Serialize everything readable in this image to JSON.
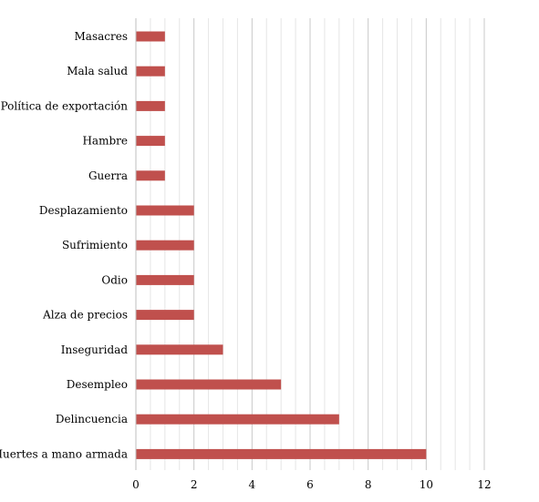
{
  "chart_data": {
    "type": "bar",
    "orientation": "horizontal",
    "title": "",
    "xlabel": "",
    "ylabel": "",
    "categories": [
      "Masacres",
      "Mala salud",
      "Política de exportación",
      "Hambre",
      "Guerra",
      "Desplazamiento",
      "Sufrimiento",
      "Odio",
      "Alza de precios",
      "Inseguridad",
      "Desempleo",
      "Delincuencia",
      "Muertes a mano armada"
    ],
    "values": [
      1,
      1,
      1,
      1,
      1,
      2,
      2,
      2,
      2,
      3,
      5,
      7,
      10
    ],
    "xlim": [
      0,
      12
    ],
    "x_ticks": [
      0,
      2,
      4,
      6,
      8,
      10,
      12
    ],
    "minor_step": 0.5,
    "grid": "vertical major and minor",
    "legend": "none",
    "bar_color": "#c0504d"
  }
}
